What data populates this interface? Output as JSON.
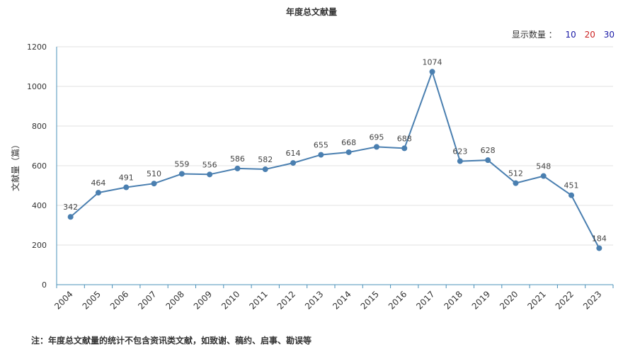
{
  "chart_data": {
    "type": "line",
    "title": "年度总文献量",
    "ylabel": "文献量（篇）",
    "xlabel": "",
    "ylim": [
      0,
      1200
    ],
    "yticks": [
      0,
      200,
      400,
      600,
      800,
      1000,
      1200
    ],
    "grid": true,
    "categories": [
      "2004",
      "2005",
      "2006",
      "2007",
      "2008",
      "2009",
      "2010",
      "2011",
      "2012",
      "2013",
      "2014",
      "2015",
      "2016",
      "2017",
      "2018",
      "2019",
      "2020",
      "2021",
      "2022",
      "2023"
    ],
    "series": [
      {
        "values": [
          342,
          464,
          491,
          510,
          559,
          556,
          586,
          582,
          614,
          655,
          668,
          695,
          688,
          1074,
          623,
          628,
          512,
          548,
          451,
          184
        ]
      }
    ],
    "colors": {
      "line": "#4a7fb0",
      "point": "#4a7fb0",
      "axis": "#4a90b8",
      "grid": "#e0e0e0"
    }
  },
  "display_count": {
    "label": "显示数量 ：",
    "options": [
      {
        "text": "10",
        "color": "#1a1aa6"
      },
      {
        "text": "20",
        "color": "#cc2222"
      },
      {
        "text": "30",
        "color": "#1a1aa6"
      }
    ]
  },
  "footnote": "注：年度总文献量的统计不包含资讯类文献，如致谢、稿约、启事、勘误等"
}
